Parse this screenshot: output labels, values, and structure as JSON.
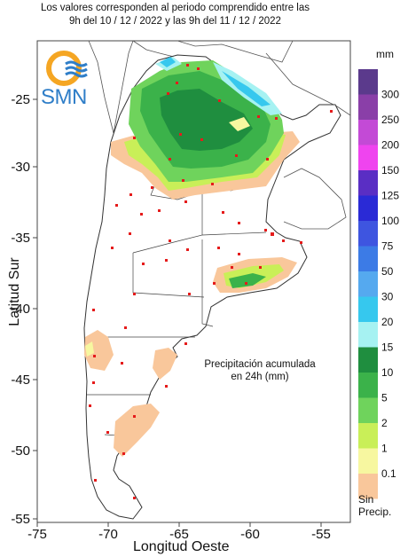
{
  "header": {
    "line1": "Los valores corresponden al periodo comprendido entre las",
    "line2": "9h del 10 / 12 / 2022  y las 9h del 11 / 12 / 2022"
  },
  "logo": {
    "text": "SMN"
  },
  "axes": {
    "ylabel": "Latitud Sur",
    "xlabel": "Longitud Oeste",
    "xticks": [
      "-75",
      "-70",
      "-65",
      "-60",
      "-55"
    ],
    "yticks": [
      "-25",
      "-30",
      "-35",
      "-40",
      "-45",
      "-50",
      "-55"
    ],
    "xlim": [
      -75,
      -53
    ],
    "ylim": [
      -55.5,
      -21
    ]
  },
  "annotation": {
    "line1": "Precipitación acumulada",
    "line2": "en 24h (mm)"
  },
  "legend": {
    "unit": "mm",
    "levels": [
      {
        "label": "300",
        "color": "#5b3a8c"
      },
      {
        "label": "250",
        "color": "#8a3fa8"
      },
      {
        "label": "200",
        "color": "#c34ad6"
      },
      {
        "label": "150",
        "color": "#ef44ef"
      },
      {
        "label": "125",
        "color": "#5a2ec4"
      },
      {
        "label": "100",
        "color": "#2a2ad6"
      },
      {
        "label": "75",
        "color": "#3e55e0"
      },
      {
        "label": "50",
        "color": "#3c7be6"
      },
      {
        "label": "30",
        "color": "#55a9ef"
      },
      {
        "label": "20",
        "color": "#36c8ee"
      },
      {
        "label": "15",
        "color": "#a6f2f2"
      },
      {
        "label": "10",
        "color": "#1f8e3f"
      },
      {
        "label": "5",
        "color": "#3bb24a"
      },
      {
        "label": "2",
        "color": "#6fd35c"
      },
      {
        "label": "1",
        "color": "#c9ef58"
      },
      {
        "label": "0.1",
        "color": "#f7f7a0"
      },
      {
        "label": "",
        "color": "#f9c79b"
      }
    ],
    "no_precip_line1": "Sin",
    "no_precip_line2": "Precip."
  }
}
